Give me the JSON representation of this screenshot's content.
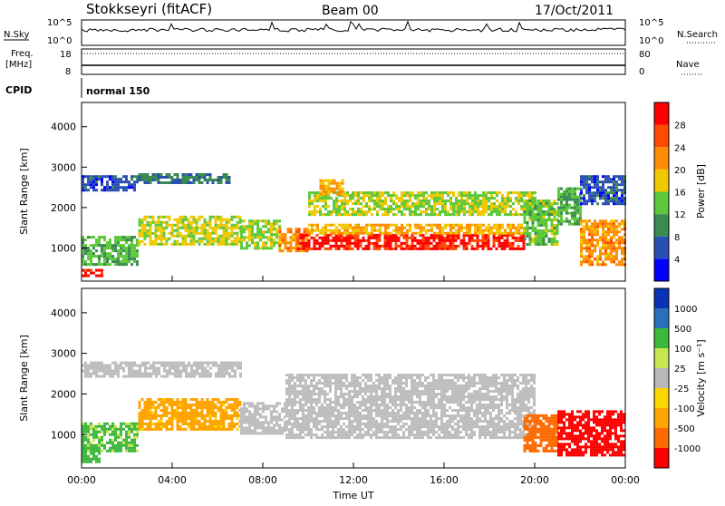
{
  "header": {
    "station": "Stokkseyri (fitACF)",
    "beam": "Beam 00",
    "date": "17/Oct/2011"
  },
  "status_panels": {
    "nsky_label": "N.Sky",
    "nsky_ticks": [
      "10^5",
      "10^0"
    ],
    "nsearch_label": "N.Search",
    "nsearch_ticks": [
      "10^5",
      "10^0"
    ],
    "freq_label": "Freq.",
    "freq_unit": "[MHz]",
    "freq_ticks": [
      "18",
      "8"
    ],
    "nave_label": "Nave",
    "nave_ticks": [
      "80",
      "0"
    ],
    "cpid_label": "CPID",
    "cpid_value": "normal 150"
  },
  "colors": {
    "power_scale": [
      "#0000ff",
      "#2a4fb3",
      "#3a8a52",
      "#5cc83a",
      "#f0c800",
      "#ff8c00",
      "#ff4a00",
      "#ff0000"
    ],
    "velocity_scale": [
      "#ff0000",
      "#ff6a00",
      "#ffa500",
      "#ffd700",
      "#b8b8b8",
      "#c8e650",
      "#3db83d",
      "#2a70b8",
      "#0a32b4"
    ],
    "ground_scatter": "#bdbdbd"
  },
  "chart_data": [
    {
      "type": "heatmap",
      "name": "power",
      "ylabel": "Slant Range [km]",
      "ylim": [
        180,
        4600
      ],
      "yticks": [
        "1000",
        "2000",
        "3000",
        "4000"
      ],
      "xlim": [
        0,
        24
      ],
      "colorbar": {
        "label": "Power [dB]",
        "range": [
          0,
          32
        ],
        "ticks": [
          "4",
          "8",
          "12",
          "16",
          "20",
          "24",
          "28"
        ]
      },
      "regions": [
        {
          "t0": 0.0,
          "t1": 0.9,
          "r0": 300,
          "r1": 480,
          "value": 30
        },
        {
          "t0": 0.0,
          "t1": 2.5,
          "r0": 2450,
          "r1": 2800,
          "value": 6
        },
        {
          "t0": 2.5,
          "t1": 6.5,
          "r0": 2600,
          "r1": 2850,
          "value": 9
        },
        {
          "t0": 0.0,
          "t1": 2.5,
          "r0": 600,
          "r1": 1300,
          "value": 13
        },
        {
          "t0": 2.5,
          "t1": 7.0,
          "r0": 1100,
          "r1": 1800,
          "value": 17
        },
        {
          "t0": 7.0,
          "t1": 8.7,
          "r0": 1000,
          "r1": 1700,
          "value": 15
        },
        {
          "t0": 8.7,
          "t1": 10.0,
          "r0": 900,
          "r1": 1500,
          "value": 22
        },
        {
          "t0": 9.5,
          "t1": 19.5,
          "r0": 950,
          "r1": 1350,
          "value": 29
        },
        {
          "t0": 10.0,
          "t1": 19.5,
          "r0": 1350,
          "r1": 1600,
          "value": 20
        },
        {
          "t0": 10.0,
          "t1": 20.0,
          "r0": 1800,
          "r1": 2400,
          "value": 16
        },
        {
          "t0": 10.5,
          "t1": 11.5,
          "r0": 2300,
          "r1": 2700,
          "value": 21
        },
        {
          "t0": 19.5,
          "t1": 21.0,
          "r0": 1100,
          "r1": 2200,
          "value": 14
        },
        {
          "t0": 21.0,
          "t1": 22.0,
          "r0": 1600,
          "r1": 2500,
          "value": 12
        },
        {
          "t0": 22.0,
          "t1": 24.0,
          "r0": 600,
          "r1": 1700,
          "value": 22
        },
        {
          "t0": 22.0,
          "t1": 24.0,
          "r0": 2100,
          "r1": 2800,
          "value": 6
        }
      ]
    },
    {
      "type": "heatmap",
      "name": "velocity",
      "ylabel": "Slant Range [km]",
      "ylim": [
        180,
        4600
      ],
      "yticks": [
        "1000",
        "2000",
        "3000",
        "4000"
      ],
      "xlim": [
        0,
        24
      ],
      "xlabel": "Time UT",
      "xticks": [
        "00:00",
        "04:00",
        "08:00",
        "12:00",
        "16:00",
        "20:00",
        "00:00"
      ],
      "colorbar": {
        "label": "Velocity [m s⁻¹]",
        "range": [
          -1200,
          1200
        ],
        "ticks": [
          "1000",
          "500",
          "100",
          "25",
          "-25",
          "-100",
          "-500",
          "-1000"
        ]
      },
      "regions": [
        {
          "t0": 0.0,
          "t1": 0.8,
          "r0": 300,
          "r1": 700,
          "value": 200,
          "kind": "iono"
        },
        {
          "t0": 0.0,
          "t1": 7.0,
          "r0": 2450,
          "r1": 2800,
          "value": 0,
          "kind": "ground"
        },
        {
          "t0": 0.0,
          "t1": 2.5,
          "r0": 600,
          "r1": 1300,
          "value": 120,
          "kind": "iono"
        },
        {
          "t0": 2.5,
          "t1": 7.0,
          "r0": 1100,
          "r1": 1900,
          "value": -60,
          "kind": "iono"
        },
        {
          "t0": 7.0,
          "t1": 9.0,
          "r0": 1000,
          "r1": 1800,
          "value": 0,
          "kind": "ground"
        },
        {
          "t0": 9.0,
          "t1": 20.0,
          "r0": 950,
          "r1": 2500,
          "value": 0,
          "kind": "ground"
        },
        {
          "t0": 19.5,
          "t1": 21.0,
          "r0": 600,
          "r1": 1500,
          "value": -150,
          "kind": "iono"
        },
        {
          "t0": 21.0,
          "t1": 24.0,
          "r0": 500,
          "r1": 1600,
          "value": -700,
          "kind": "iono"
        }
      ]
    }
  ]
}
